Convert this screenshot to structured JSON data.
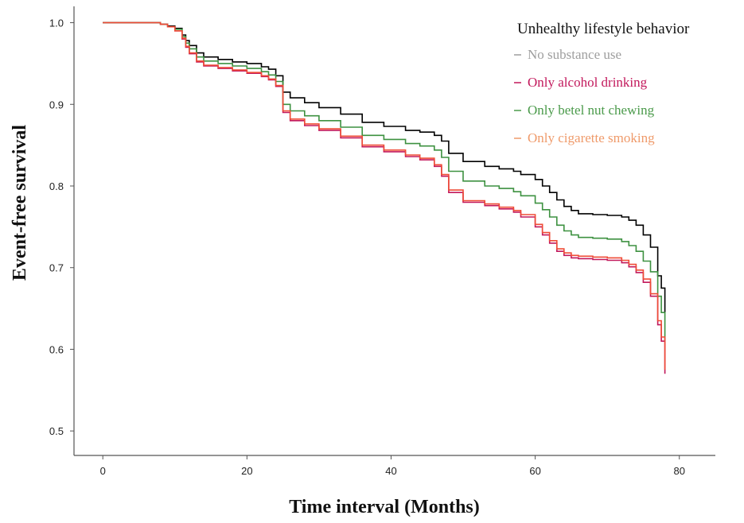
{
  "chart_data": {
    "type": "line",
    "xlabel": "Time interval (Months)",
    "ylabel": "Event-free survival",
    "xlim": [
      -4,
      85
    ],
    "ylim": [
      0.47,
      1.02
    ],
    "x_ticks": [
      0,
      20,
      40,
      60,
      80
    ],
    "x_tick_labels": [
      "0",
      "20",
      "40",
      "60",
      "80"
    ],
    "y_ticks": [
      0.5,
      0.6,
      0.7,
      0.8,
      0.9,
      1.0
    ],
    "y_tick_labels": [
      "0.5",
      "0.6",
      "0.7",
      "0.8",
      "0.9",
      "1.0"
    ],
    "grid": false,
    "legend": {
      "title": "Unhealthy lifestyle behavior",
      "placement": "top-right"
    },
    "series": [
      {
        "name": "No substance use",
        "line_color": "#000000",
        "legend_color": "#9e9e9e",
        "x": [
          0,
          7,
          8,
          9,
          10,
          11,
          11.5,
          12,
          13,
          14,
          16,
          18,
          20,
          22,
          23,
          24,
          25,
          26,
          28,
          30,
          33,
          36,
          39,
          42,
          44,
          46,
          47,
          48,
          50,
          53,
          55,
          57,
          58,
          60,
          61,
          62,
          63,
          64,
          65,
          66,
          68,
          70,
          72,
          73,
          74,
          75,
          76,
          77,
          77.5,
          78
        ],
        "y": [
          1.0,
          1.0,
          0.998,
          0.996,
          0.993,
          0.985,
          0.978,
          0.972,
          0.963,
          0.958,
          0.955,
          0.952,
          0.95,
          0.946,
          0.943,
          0.935,
          0.915,
          0.908,
          0.902,
          0.896,
          0.888,
          0.878,
          0.873,
          0.868,
          0.866,
          0.862,
          0.855,
          0.84,
          0.83,
          0.824,
          0.821,
          0.818,
          0.814,
          0.808,
          0.8,
          0.792,
          0.783,
          0.775,
          0.77,
          0.766,
          0.765,
          0.764,
          0.762,
          0.758,
          0.752,
          0.74,
          0.725,
          0.69,
          0.675,
          0.645
        ]
      },
      {
        "name": "Only alcohol drinking",
        "line_color": "#c2185b",
        "legend_color": "#c2185b",
        "x": [
          0,
          7,
          8,
          9,
          10,
          11,
          11.5,
          12,
          13,
          14,
          16,
          18,
          20,
          22,
          23,
          24,
          25,
          26,
          28,
          30,
          33,
          36,
          39,
          42,
          44,
          46,
          47,
          48,
          50,
          53,
          55,
          57,
          58,
          60,
          61,
          62,
          63,
          64,
          65,
          66,
          68,
          70,
          72,
          73,
          74,
          75,
          76,
          77,
          77.5,
          78
        ],
        "y": [
          1.0,
          1.0,
          0.998,
          0.995,
          0.99,
          0.98,
          0.97,
          0.962,
          0.952,
          0.947,
          0.944,
          0.941,
          0.938,
          0.934,
          0.93,
          0.922,
          0.89,
          0.88,
          0.874,
          0.868,
          0.859,
          0.848,
          0.842,
          0.836,
          0.832,
          0.824,
          0.812,
          0.792,
          0.78,
          0.776,
          0.772,
          0.768,
          0.762,
          0.75,
          0.74,
          0.73,
          0.72,
          0.715,
          0.712,
          0.711,
          0.71,
          0.709,
          0.706,
          0.701,
          0.694,
          0.682,
          0.665,
          0.63,
          0.61,
          0.57
        ]
      },
      {
        "name": "Only betel nut chewing",
        "line_color": "#3d9140",
        "legend_color": "#4a9a4a",
        "x": [
          0,
          7,
          8,
          9,
          10,
          11,
          11.5,
          12,
          13,
          14,
          16,
          18,
          20,
          22,
          23,
          24,
          25,
          26,
          28,
          30,
          33,
          36,
          39,
          42,
          44,
          46,
          47,
          48,
          50,
          53,
          55,
          57,
          58,
          60,
          61,
          62,
          63,
          64,
          65,
          66,
          68,
          70,
          72,
          73,
          74,
          75,
          76,
          77,
          77.5,
          78
        ],
        "y": [
          1.0,
          1.0,
          0.998,
          0.995,
          0.992,
          0.983,
          0.975,
          0.968,
          0.958,
          0.953,
          0.95,
          0.947,
          0.944,
          0.94,
          0.936,
          0.928,
          0.9,
          0.892,
          0.886,
          0.88,
          0.872,
          0.862,
          0.857,
          0.852,
          0.849,
          0.844,
          0.835,
          0.818,
          0.806,
          0.8,
          0.797,
          0.793,
          0.788,
          0.779,
          0.771,
          0.762,
          0.752,
          0.745,
          0.74,
          0.737,
          0.736,
          0.735,
          0.732,
          0.727,
          0.72,
          0.708,
          0.695,
          0.665,
          0.645,
          0.61
        ]
      },
      {
        "name": "Only cigarette smoking",
        "line_color": "#ef4b36",
        "legend_color": "#ef9a6a",
        "x": [
          0,
          7,
          8,
          9,
          10,
          11,
          11.5,
          12,
          13,
          14,
          16,
          18,
          20,
          22,
          23,
          24,
          25,
          26,
          28,
          30,
          33,
          36,
          39,
          42,
          44,
          46,
          47,
          48,
          50,
          53,
          55,
          57,
          58,
          60,
          61,
          62,
          63,
          64,
          65,
          66,
          68,
          70,
          72,
          73,
          74,
          75,
          76,
          77,
          77.5,
          78
        ],
        "y": [
          1.0,
          1.0,
          0.998,
          0.995,
          0.99,
          0.981,
          0.971,
          0.963,
          0.953,
          0.948,
          0.945,
          0.942,
          0.939,
          0.935,
          0.931,
          0.923,
          0.892,
          0.882,
          0.876,
          0.87,
          0.861,
          0.85,
          0.844,
          0.838,
          0.834,
          0.826,
          0.814,
          0.795,
          0.782,
          0.778,
          0.774,
          0.77,
          0.765,
          0.753,
          0.743,
          0.733,
          0.723,
          0.718,
          0.715,
          0.714,
          0.713,
          0.712,
          0.709,
          0.704,
          0.697,
          0.686,
          0.668,
          0.635,
          0.615,
          0.575
        ]
      }
    ]
  }
}
